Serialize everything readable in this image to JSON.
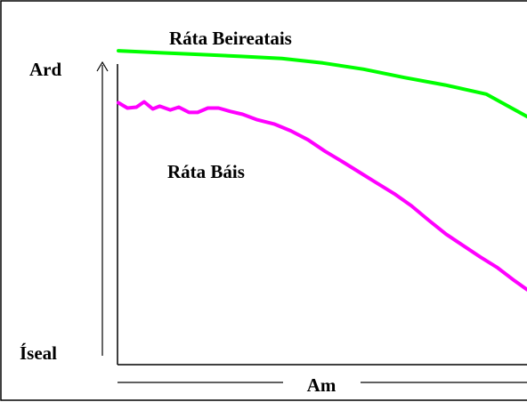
{
  "chart_data": {
    "type": "line",
    "xlabel": "Am",
    "ylabel_high": "Ard",
    "ylabel_low": "Íseal",
    "ylim": [
      0,
      100
    ],
    "xlim": [
      0,
      100
    ],
    "grid": false,
    "legend": "none",
    "series": [
      {
        "name": "Ráta Beireatais",
        "color": "#00ff00",
        "x": [
          0,
          10,
          20,
          30,
          40,
          50,
          60,
          70,
          80,
          90,
          100
        ],
        "y": [
          99.4,
          98.8,
          98.2,
          97.6,
          96.9,
          95.5,
          93.5,
          90.8,
          88.4,
          85.5,
          78.3
        ]
      },
      {
        "name": "Ráta Báis",
        "color": "#ff00ff",
        "x": [
          0,
          2.2,
          4.4,
          6.3,
          8.4,
          10.1,
          12.7,
          14.8,
          17.3,
          19.4,
          21.9,
          24.5,
          27.4,
          30.4,
          33.8,
          38.1,
          42.2,
          46.4,
          50.6,
          54.9,
          59.1,
          63.3,
          67.5,
          71.7,
          75.9,
          80.2,
          84.4,
          88.6,
          92.8,
          97.0,
          100
        ],
        "y": [
          82.7,
          81.0,
          81.3,
          83.0,
          80.7,
          81.6,
          80.4,
          81.3,
          79.6,
          79.6,
          81.0,
          81.0,
          79.9,
          79.0,
          77.3,
          75.9,
          73.7,
          70.8,
          67.1,
          63.7,
          60.3,
          56.9,
          53.5,
          49.6,
          45.0,
          40.5,
          36.8,
          33.1,
          29.7,
          25.5,
          22.7
        ]
      }
    ]
  }
}
